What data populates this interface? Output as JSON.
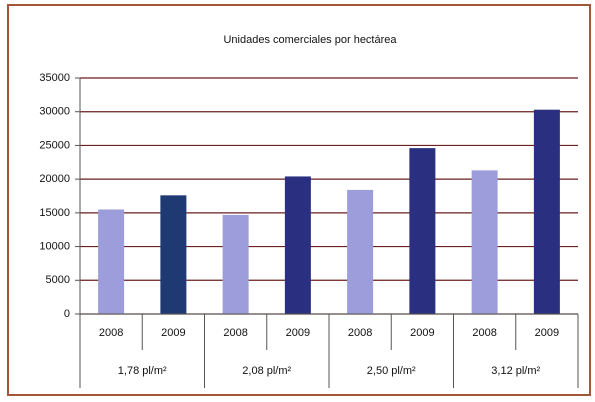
{
  "chart_data": {
    "type": "bar",
    "title": "Unidades comerciales por hectárea",
    "categories": [
      "2008",
      "2009",
      "2008",
      "2009",
      "2008",
      "2009",
      "2008",
      "2009"
    ],
    "groups": [
      "1,78 pl/m²",
      "2,08 pl/m²",
      "2,50 pl/m²",
      "3,12 pl/m²"
    ],
    "values": [
      15500,
      17600,
      14700,
      20400,
      18400,
      24600,
      21300,
      30300
    ],
    "colors": [
      "#9d9ddb",
      "#1f3a73",
      "#9d9ddb",
      "#2a2f80",
      "#9d9ddb",
      "#2a2f80",
      "#9d9ddb",
      "#2a2f80"
    ],
    "ylim": [
      0,
      35000
    ],
    "yticks": [
      0,
      5000,
      10000,
      15000,
      20000,
      25000,
      30000,
      35000
    ],
    "grid": true
  }
}
